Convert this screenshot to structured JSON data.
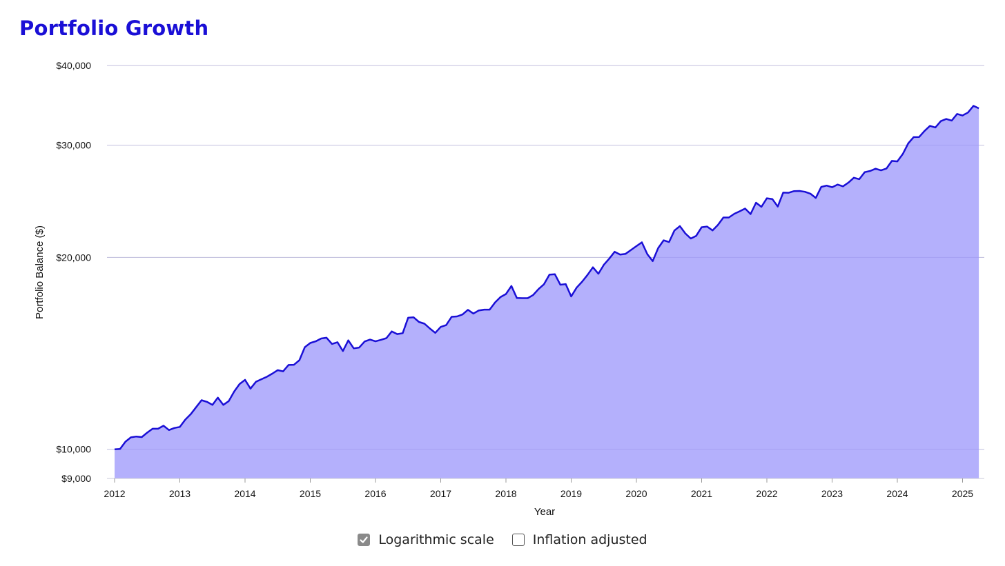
{
  "title": "Portfolio Growth",
  "colors": {
    "line": "#1a0fd6",
    "fill": "#b4b0fc",
    "title": "#1a0fd6",
    "grid": "#dddddd"
  },
  "controls": {
    "log_scale": {
      "label": "Logarithmic scale",
      "checked": true
    },
    "inflation": {
      "label": "Inflation adjusted",
      "checked": false
    }
  },
  "chart_data": {
    "type": "area",
    "title": "Portfolio Growth",
    "xlabel": "Year",
    "ylabel": "Portfolio Balance ($)",
    "y_scale": "log",
    "ylim": [
      9000,
      40000
    ],
    "xlim": [
      "2012-01",
      "2025-04"
    ],
    "y_ticks": [
      {
        "value": 9000,
        "label": "$9,000"
      },
      {
        "value": 10000,
        "label": "$10,000"
      },
      {
        "value": 20000,
        "label": "$20,000"
      },
      {
        "value": 30000,
        "label": "$30,000"
      },
      {
        "value": 40000,
        "label": "$40,000"
      }
    ],
    "x_ticks": [
      "2012",
      "2013",
      "2014",
      "2015",
      "2016",
      "2017",
      "2018",
      "2019",
      "2020",
      "2021",
      "2022",
      "2023",
      "2024",
      "2025"
    ],
    "grid": "horizontal",
    "x": [
      "2012-01",
      "2012-02",
      "2012-03",
      "2012-04",
      "2012-05",
      "2012-06",
      "2012-07",
      "2012-08",
      "2012-09",
      "2012-10",
      "2012-11",
      "2012-12",
      "2013-01",
      "2013-02",
      "2013-03",
      "2013-04",
      "2013-05",
      "2013-06",
      "2013-07",
      "2013-08",
      "2013-09",
      "2013-10",
      "2013-11",
      "2013-12",
      "2014-01",
      "2014-02",
      "2014-03",
      "2014-04",
      "2014-05",
      "2014-06",
      "2014-07",
      "2014-08",
      "2014-09",
      "2014-10",
      "2014-11",
      "2014-12",
      "2015-01",
      "2015-02",
      "2015-03",
      "2015-04",
      "2015-05",
      "2015-06",
      "2015-07",
      "2015-08",
      "2015-09",
      "2015-10",
      "2015-11",
      "2015-12",
      "2016-01",
      "2016-02",
      "2016-03",
      "2016-04",
      "2016-05",
      "2016-06",
      "2016-07",
      "2016-08",
      "2016-09",
      "2016-10",
      "2016-11",
      "2016-12",
      "2017-01",
      "2017-02",
      "2017-03",
      "2017-04",
      "2017-05",
      "2017-06",
      "2017-07",
      "2017-08",
      "2017-09",
      "2017-10",
      "2017-11",
      "2017-12",
      "2018-01",
      "2018-02",
      "2018-03",
      "2018-04",
      "2018-05",
      "2018-06",
      "2018-07",
      "2018-08",
      "2018-09",
      "2018-10",
      "2018-11",
      "2018-12",
      "2019-01",
      "2019-02",
      "2019-03",
      "2019-04",
      "2019-05",
      "2019-06",
      "2019-07",
      "2019-08",
      "2019-09",
      "2019-10",
      "2019-11",
      "2019-12",
      "2020-01",
      "2020-02",
      "2020-03",
      "2020-04",
      "2020-05",
      "2020-06",
      "2020-07",
      "2020-08",
      "2020-09",
      "2020-10",
      "2020-11",
      "2020-12",
      "2021-01",
      "2021-02",
      "2021-03",
      "2021-04",
      "2021-05",
      "2021-06",
      "2021-07",
      "2021-08",
      "2021-09",
      "2021-10",
      "2021-11",
      "2021-12",
      "2022-01",
      "2022-02",
      "2022-03",
      "2022-04",
      "2022-05",
      "2022-06",
      "2022-07",
      "2022-08",
      "2022-09",
      "2022-10",
      "2022-11",
      "2022-12",
      "2023-01",
      "2023-02",
      "2023-03",
      "2023-04",
      "2023-05",
      "2023-06",
      "2023-07",
      "2023-08",
      "2023-09",
      "2023-10",
      "2023-11",
      "2023-12",
      "2024-01",
      "2024-02",
      "2024-03",
      "2024-04",
      "2024-05",
      "2024-06",
      "2024-07",
      "2024-08",
      "2024-09",
      "2024-10",
      "2024-11",
      "2024-12",
      "2025-01",
      "2025-02",
      "2025-03",
      "2025-04"
    ],
    "series": [
      {
        "values": [
          10000,
          10010,
          10280,
          10440,
          10470,
          10450,
          10620,
          10770,
          10770,
          10890,
          10720,
          10800,
          10840,
          11130,
          11350,
          11640,
          11940,
          11870,
          11740,
          12050,
          11740,
          11900,
          12320,
          12660,
          12850,
          12450,
          12760,
          12880,
          12990,
          13140,
          13310,
          13250,
          13560,
          13570,
          13800,
          14460,
          14680,
          14770,
          14920,
          14960,
          14630,
          14720,
          14260,
          14820,
          14400,
          14440,
          14760,
          14860,
          14770,
          14850,
          14940,
          15310,
          15160,
          15210,
          16080,
          16110,
          15840,
          15740,
          15470,
          15230,
          15560,
          15660,
          16140,
          16160,
          16270,
          16550,
          16330,
          16510,
          16560,
          16560,
          17000,
          17330,
          17520,
          18040,
          17270,
          17260,
          17260,
          17460,
          17840,
          18150,
          18790,
          18820,
          18120,
          18160,
          17370,
          17930,
          18320,
          18770,
          19300,
          18850,
          19470,
          19910,
          20410,
          20210,
          20260,
          20540,
          20830,
          21120,
          20240,
          19730,
          20680,
          21270,
          21140,
          22040,
          22390,
          21810,
          21410,
          21620,
          22300,
          22360,
          22050,
          22490,
          23100,
          23100,
          23410,
          23620,
          23860,
          23390,
          24370,
          24010,
          24760,
          24690,
          24030,
          25270,
          25260,
          25410,
          25420,
          25350,
          25180,
          24790,
          25800,
          25920,
          25770,
          26020,
          25850,
          26200,
          26670,
          26530,
          27210,
          27330,
          27550,
          27390,
          27570,
          28340,
          28290,
          29050,
          30190,
          30880,
          30890,
          31580,
          32160,
          31980,
          32720,
          32970,
          32780,
          33580,
          33390,
          33750,
          34580,
          34270
        ]
      }
    ]
  }
}
